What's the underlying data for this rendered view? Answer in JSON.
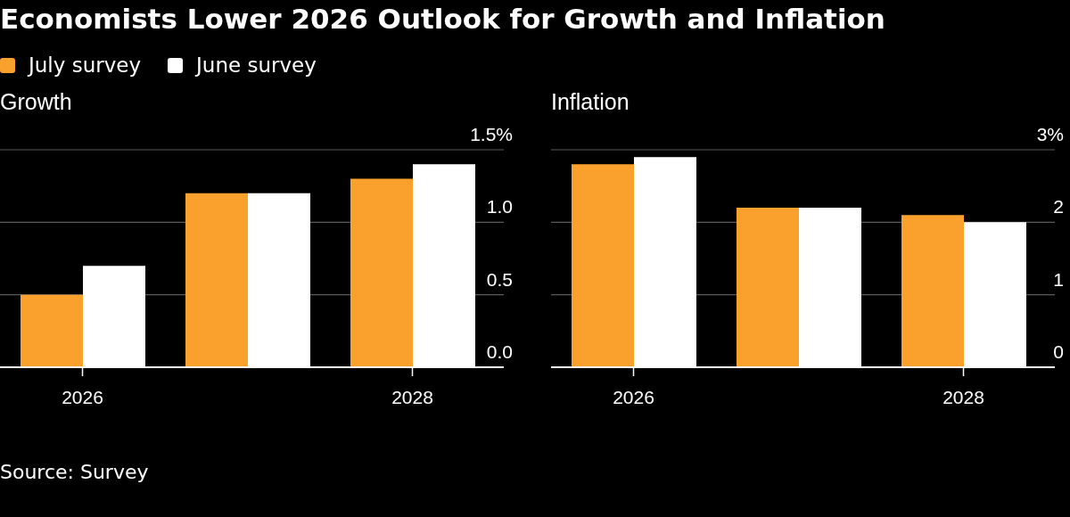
{
  "chart_data": [
    {
      "type": "bar",
      "title": "Economists Lower 2026 Outlook for Growth and Inflation",
      "subtitle": "Growth",
      "legend": "top left",
      "categories": [
        "2026",
        null,
        "2028"
      ],
      "series": [
        {
          "name": "July survey",
          "color": "#f9a02d",
          "values": [
            0.5,
            1.2,
            1.3
          ]
        },
        {
          "name": "June survey",
          "color": "#ffffff",
          "values": [
            0.7,
            1.2,
            1.4
          ]
        }
      ],
      "ylim": [
        0,
        1.5
      ],
      "yticks": [
        {
          "value": 0,
          "label": "0.0"
        },
        {
          "value": 0.5,
          "label": "0.5"
        },
        {
          "value": 1,
          "label": "1.0"
        },
        {
          "value": 1.5,
          "label": "1.5%"
        }
      ],
      "grid": "y",
      "annotations": [
        "Source: Survey"
      ]
    },
    {
      "type": "bar",
      "subtitle": "Inflation",
      "categories": [
        "2026",
        null,
        "2028"
      ],
      "series": [
        {
          "color": "#f9a02d",
          "values": [
            2.8,
            2.2,
            2.1
          ]
        },
        {
          "color": "#ffffff",
          "values": [
            2.9,
            2.2,
            2.0
          ]
        }
      ],
      "ylim": [
        0,
        3
      ],
      "yticks": [
        0,
        1,
        2,
        {
          "value": 3,
          "label": "3%"
        }
      ],
      "grid": "y"
    }
  ]
}
